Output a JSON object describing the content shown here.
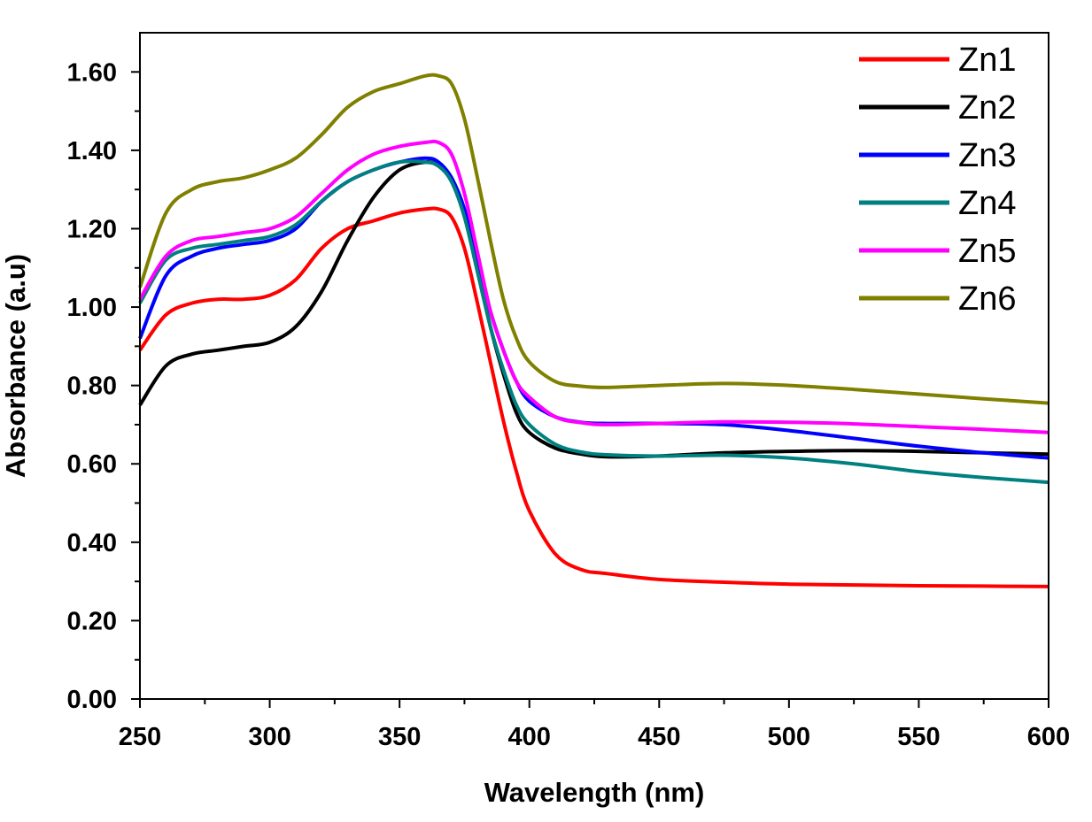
{
  "chart_data": {
    "type": "line",
    "title": "",
    "xlabel": "Wavelength (nm)",
    "ylabel": "Absorbance (a.u)",
    "xlim": [
      250,
      600
    ],
    "ylim": [
      0,
      1.7
    ],
    "xticks": [
      250,
      300,
      350,
      400,
      450,
      500,
      550,
      600
    ],
    "yticks": [
      0,
      0.2,
      0.4,
      0.6,
      0.8,
      1.0,
      1.2,
      1.4,
      1.6
    ],
    "xtick_labels": [
      "250",
      "300",
      "350",
      "400",
      "450",
      "500",
      "550",
      "600"
    ],
    "ytick_labels": [
      "0.00",
      "0.20",
      "0.40",
      "0.60",
      "0.80",
      "1.00",
      "1.20",
      "1.40",
      "1.60"
    ],
    "grid": false,
    "legend": "top-right",
    "x": [
      250,
      260,
      270,
      280,
      290,
      300,
      310,
      320,
      330,
      340,
      350,
      360,
      365,
      370,
      375,
      380,
      385,
      390,
      395,
      400,
      410,
      420,
      430,
      450,
      475,
      500,
      525,
      550,
      575,
      600
    ],
    "series": [
      {
        "name": "Zn1",
        "color": "#ff0000",
        "values": [
          0.89,
          0.98,
          1.01,
          1.02,
          1.02,
          1.03,
          1.07,
          1.15,
          1.2,
          1.22,
          1.24,
          1.25,
          1.25,
          1.23,
          1.15,
          1.01,
          0.86,
          0.71,
          0.58,
          0.48,
          0.37,
          0.33,
          0.32,
          0.305,
          0.298,
          0.293,
          0.291,
          0.289,
          0.288,
          0.287
        ]
      },
      {
        "name": "Zn2",
        "color": "#000000",
        "values": [
          0.75,
          0.85,
          0.88,
          0.89,
          0.9,
          0.91,
          0.95,
          1.04,
          1.17,
          1.28,
          1.35,
          1.37,
          1.36,
          1.33,
          1.24,
          1.1,
          0.95,
          0.83,
          0.73,
          0.68,
          0.64,
          0.625,
          0.618,
          0.62,
          0.628,
          0.632,
          0.634,
          0.632,
          0.628,
          0.625
        ]
      },
      {
        "name": "Zn3",
        "color": "#0000ff",
        "values": [
          0.92,
          1.08,
          1.13,
          1.15,
          1.16,
          1.17,
          1.2,
          1.27,
          1.32,
          1.35,
          1.37,
          1.38,
          1.37,
          1.33,
          1.25,
          1.12,
          0.99,
          0.89,
          0.81,
          0.76,
          0.72,
          0.706,
          0.703,
          0.703,
          0.7,
          0.685,
          0.665,
          0.645,
          0.628,
          0.615
        ]
      },
      {
        "name": "Zn4",
        "color": "#008080",
        "values": [
          1.01,
          1.12,
          1.15,
          1.16,
          1.17,
          1.18,
          1.21,
          1.27,
          1.32,
          1.35,
          1.37,
          1.37,
          1.36,
          1.32,
          1.23,
          1.09,
          0.95,
          0.84,
          0.75,
          0.7,
          0.65,
          0.63,
          0.623,
          0.62,
          0.622,
          0.615,
          0.6,
          0.58,
          0.565,
          0.553
        ]
      },
      {
        "name": "Zn5",
        "color": "#ff00ff",
        "values": [
          1.02,
          1.13,
          1.17,
          1.18,
          1.19,
          1.2,
          1.23,
          1.29,
          1.35,
          1.39,
          1.41,
          1.42,
          1.42,
          1.39,
          1.29,
          1.14,
          0.99,
          0.89,
          0.81,
          0.77,
          0.72,
          0.705,
          0.7,
          0.703,
          0.707,
          0.706,
          0.702,
          0.695,
          0.688,
          0.68
        ]
      },
      {
        "name": "Zn6",
        "color": "#808000",
        "values": [
          1.05,
          1.24,
          1.3,
          1.32,
          1.33,
          1.35,
          1.38,
          1.44,
          1.51,
          1.55,
          1.57,
          1.59,
          1.59,
          1.57,
          1.48,
          1.33,
          1.17,
          1.02,
          0.92,
          0.86,
          0.81,
          0.798,
          0.795,
          0.8,
          0.805,
          0.8,
          0.79,
          0.778,
          0.766,
          0.755
        ]
      }
    ]
  }
}
